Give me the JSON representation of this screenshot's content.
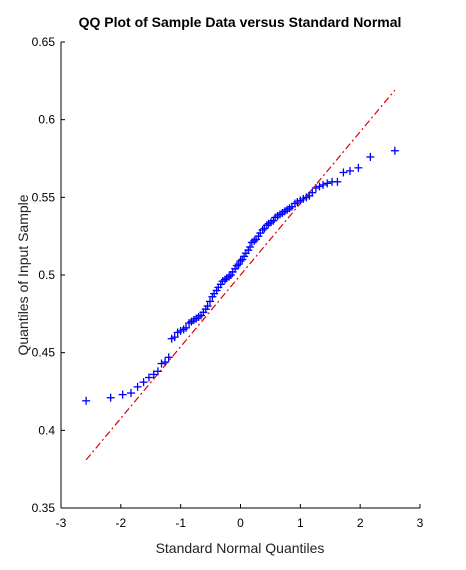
{
  "chart_data": {
    "type": "scatter",
    "title": "QQ Plot of Sample Data versus Standard Normal",
    "xlabel": "Standard Normal Quantiles",
    "ylabel": "Quantiles of Input Sample",
    "xlim": [
      -3,
      3
    ],
    "ylim": [
      0.35,
      0.65
    ],
    "xticks": [
      -3,
      -2,
      -1,
      0,
      1,
      2,
      3
    ],
    "xtick_labels": [
      "-3",
      "-2",
      "-1",
      "0",
      "1",
      "2",
      "3"
    ],
    "yticks": [
      0.35,
      0.4,
      0.45,
      0.5,
      0.55,
      0.6,
      0.65
    ],
    "ytick_labels": [
      "0.35",
      "0.4",
      "0.45",
      "0.5",
      "0.55",
      "0.6",
      "0.65"
    ],
    "grid": false,
    "colors": {
      "points": "#0000ff",
      "reference_line": "#e00000"
    },
    "reference_line": {
      "x": [
        -2.58,
        2.58
      ],
      "y": [
        0.381,
        0.619
      ]
    },
    "points": {
      "x": [
        -2.58,
        -2.17,
        -1.97,
        -1.83,
        -1.72,
        -1.62,
        -1.53,
        -1.45,
        -1.38,
        -1.32,
        -1.26,
        -1.2,
        -1.15,
        -1.1,
        -1.05,
        -1.0,
        -0.95,
        -0.91,
        -0.86,
        -0.82,
        -0.78,
        -0.74,
        -0.7,
        -0.66,
        -0.62,
        -0.58,
        -0.55,
        -0.51,
        -0.47,
        -0.44,
        -0.4,
        -0.37,
        -0.33,
        -0.3,
        -0.26,
        -0.23,
        -0.19,
        -0.16,
        -0.13,
        -0.09,
        -0.06,
        -0.03,
        0.0,
        0.03,
        0.06,
        0.09,
        0.13,
        0.16,
        0.19,
        0.23,
        0.26,
        0.3,
        0.33,
        0.37,
        0.4,
        0.44,
        0.47,
        0.51,
        0.55,
        0.58,
        0.62,
        0.66,
        0.7,
        0.74,
        0.78,
        0.82,
        0.86,
        0.91,
        0.95,
        1.0,
        1.05,
        1.1,
        1.15,
        1.2,
        1.26,
        1.32,
        1.38,
        1.45,
        1.53,
        1.62,
        1.72,
        1.83,
        1.97,
        2.17,
        2.58
      ],
      "y": [
        0.419,
        0.421,
        0.423,
        0.424,
        0.428,
        0.431,
        0.434,
        0.436,
        0.438,
        0.443,
        0.444,
        0.447,
        0.459,
        0.46,
        0.463,
        0.464,
        0.465,
        0.466,
        0.469,
        0.47,
        0.471,
        0.472,
        0.473,
        0.474,
        0.476,
        0.478,
        0.48,
        0.483,
        0.486,
        0.488,
        0.49,
        0.492,
        0.494,
        0.496,
        0.497,
        0.498,
        0.499,
        0.5,
        0.502,
        0.504,
        0.506,
        0.507,
        0.509,
        0.51,
        0.512,
        0.514,
        0.516,
        0.518,
        0.521,
        0.522,
        0.523,
        0.525,
        0.527,
        0.529,
        0.53,
        0.532,
        0.533,
        0.534,
        0.535,
        0.537,
        0.538,
        0.539,
        0.54,
        0.541,
        0.542,
        0.543,
        0.544,
        0.546,
        0.547,
        0.548,
        0.549,
        0.55,
        0.551,
        0.553,
        0.556,
        0.557,
        0.558,
        0.559,
        0.56,
        0.56,
        0.566,
        0.567,
        0.569,
        0.576,
        0.58
      ]
    }
  }
}
